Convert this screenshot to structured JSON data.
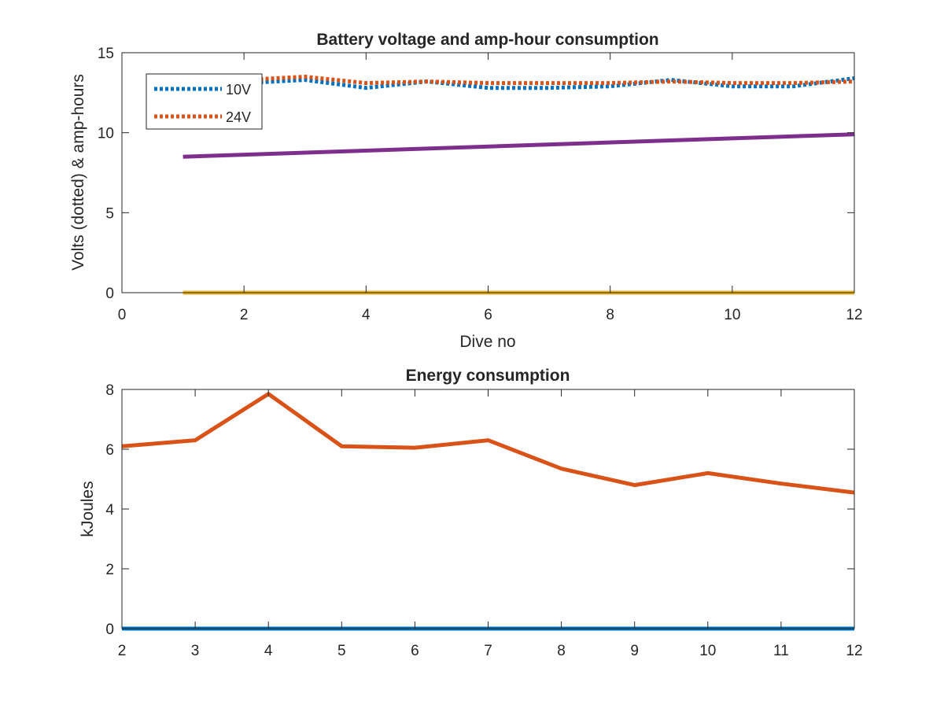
{
  "chart_data": [
    {
      "type": "line",
      "title": "Battery voltage and amp-hour consumption",
      "xlabel": "Dive no",
      "ylabel": "Volts (dotted) & amp-hours",
      "xlim": [
        0,
        12
      ],
      "ylim": [
        0,
        15
      ],
      "xticks": [
        0,
        2,
        4,
        6,
        8,
        10,
        12
      ],
      "yticks": [
        0,
        5,
        10,
        15
      ],
      "grid": false,
      "legend": "top-left",
      "series": [
        {
          "name": "10V",
          "style": "dotted",
          "color": "#0072BD",
          "x": [
            1,
            2,
            3,
            4,
            5,
            6,
            7,
            8,
            9,
            10,
            11,
            12
          ],
          "y": [
            13.2,
            13.1,
            13.3,
            12.8,
            13.2,
            12.8,
            12.8,
            12.9,
            13.3,
            12.9,
            12.9,
            13.4
          ]
        },
        {
          "name": "24V",
          "style": "dotted",
          "color": "#D95319",
          "x": [
            1,
            2,
            3,
            4,
            5,
            6,
            7,
            8,
            9,
            10,
            11,
            12
          ],
          "y": [
            13.3,
            13.3,
            13.5,
            13.1,
            13.2,
            13.1,
            13.1,
            13.1,
            13.2,
            13.1,
            13.1,
            13.2
          ]
        },
        {
          "style": "solid",
          "color": "#7E2F8E",
          "x": [
            1,
            12
          ],
          "y": [
            8.5,
            9.9
          ]
        },
        {
          "style": "solid",
          "color": "#EDB120",
          "x": [
            1,
            12
          ],
          "y": [
            0,
            0
          ]
        }
      ]
    },
    {
      "type": "line",
      "title": "Energy consumption",
      "xlabel": "",
      "ylabel": "kJoules",
      "xlim": [
        2,
        12
      ],
      "ylim": [
        0,
        8
      ],
      "xticks": [
        2,
        3,
        4,
        5,
        6,
        7,
        8,
        9,
        10,
        11,
        12
      ],
      "yticks": [
        0,
        2,
        4,
        6,
        8
      ],
      "grid": false,
      "series": [
        {
          "style": "solid",
          "color": "#D95319",
          "x": [
            2,
            3,
            4,
            5,
            6,
            7,
            8,
            9,
            10,
            11,
            12
          ],
          "y": [
            6.1,
            6.3,
            7.85,
            6.1,
            6.05,
            6.3,
            5.35,
            4.8,
            5.2,
            4.85,
            4.55
          ]
        },
        {
          "style": "solid",
          "color": "#0072BD",
          "x": [
            2,
            12
          ],
          "y": [
            0,
            0
          ]
        }
      ]
    }
  ]
}
